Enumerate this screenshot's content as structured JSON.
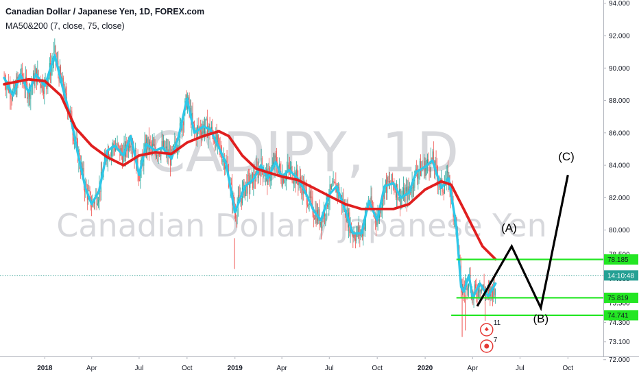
{
  "header": {
    "title": "Canadian Dollar / Japanese Yen, 1D, FOREX.com",
    "study": "MA50&200 (7, close, 75, close)"
  },
  "watermark": {
    "symbol": "CADJPY, 1D",
    "name": "Canadian Dollar / Japanese Yen"
  },
  "colors": {
    "ma_fast": "#2ec7e8",
    "ma_slow": "#e01f1f",
    "level": "#23e623",
    "wave": "#000000",
    "candle_up": "#26a69a",
    "candle_down": "#ef5350",
    "current_price_line": "#2b9a8e",
    "current_price_label": "#25a094"
  },
  "icons": [
    "flag-canada-icon",
    "flag-japan-icon"
  ],
  "event_counts": [
    "11",
    "7"
  ],
  "chart_data": {
    "type": "line",
    "ylim": [
      72.2,
      94.2
    ],
    "y_ticks": [
      94.0,
      92.0,
      90.0,
      88.0,
      86.0,
      84.0,
      82.0,
      80.0,
      78.5,
      77.0,
      75.5,
      74.3,
      73.1,
      72.0
    ],
    "y_tick_labels": [
      "94.000",
      "92.000",
      "90.000",
      "88.000",
      "86.000",
      "84.000",
      "82.000",
      "80.000",
      "78.500",
      "77.000",
      "75.500",
      "74.300",
      "73.100",
      "72.000"
    ],
    "x_labels": [
      "2018",
      "Apr",
      "Jul",
      "Oct",
      "2019",
      "Apr",
      "Jul",
      "Oct",
      "2020",
      "Apr",
      "Jul",
      "Oct"
    ],
    "x_label_bold": [
      "2018",
      "2019",
      "2020"
    ],
    "price_labels": [
      {
        "value": 78.185,
        "text": "78.185",
        "kind": "level"
      },
      {
        "value": 77.2,
        "text": "14:10:48",
        "kind": "current"
      },
      {
        "value": 75.819,
        "text": "75.819",
        "kind": "level"
      },
      {
        "value": 74.741,
        "text": "74.741",
        "kind": "level"
      }
    ],
    "levels": [
      {
        "value": 78.185,
        "from": "2020-03-01",
        "to": "2020-10-31"
      },
      {
        "value": 75.819,
        "from": "2020-03-01",
        "to": "2020-10-31"
      },
      {
        "value": 74.741,
        "from": "2020-02-20",
        "to": "2020-10-31"
      }
    ],
    "current_price": 77.2,
    "series": [
      {
        "kind": "ma_fast",
        "points": [
          [
            "2017-10-15",
            89.4
          ],
          [
            "2017-11-01",
            88.3
          ],
          [
            "2017-11-15",
            89.6
          ],
          [
            "2017-12-01",
            88.5
          ],
          [
            "2017-12-15",
            89.6
          ],
          [
            "2018-01-01",
            88.9
          ],
          [
            "2018-01-20",
            90.8
          ],
          [
            "2018-02-05",
            88.7
          ],
          [
            "2018-02-20",
            86.9
          ],
          [
            "2018-03-05",
            84.8
          ],
          [
            "2018-03-20",
            82.6
          ],
          [
            "2018-04-01",
            81.6
          ],
          [
            "2018-04-15",
            82.4
          ],
          [
            "2018-05-01",
            84.9
          ],
          [
            "2018-05-15",
            85.2
          ],
          [
            "2018-06-01",
            84.6
          ],
          [
            "2018-06-15",
            85.8
          ],
          [
            "2018-07-01",
            83.4
          ],
          [
            "2018-07-15",
            85.3
          ],
          [
            "2018-08-01",
            84.9
          ],
          [
            "2018-08-15",
            85.1
          ],
          [
            "2018-09-01",
            84.4
          ],
          [
            "2018-09-15",
            85.8
          ],
          [
            "2018-10-01",
            88.1
          ],
          [
            "2018-10-15",
            86.0
          ],
          [
            "2018-11-01",
            86.4
          ],
          [
            "2018-11-15",
            86.2
          ],
          [
            "2018-12-01",
            85.1
          ],
          [
            "2018-12-15",
            84.1
          ],
          [
            "2019-01-01",
            81.1
          ],
          [
            "2019-01-20",
            82.7
          ],
          [
            "2019-02-05",
            83.1
          ],
          [
            "2019-02-20",
            84.0
          ],
          [
            "2019-03-05",
            83.2
          ],
          [
            "2019-03-20",
            84.2
          ],
          [
            "2019-04-01",
            83.3
          ],
          [
            "2019-04-15",
            83.7
          ],
          [
            "2019-05-01",
            83.2
          ],
          [
            "2019-05-15",
            82.4
          ],
          [
            "2019-06-01",
            81.2
          ],
          [
            "2019-06-15",
            80.6
          ],
          [
            "2019-07-01",
            82.2
          ],
          [
            "2019-07-15",
            82.7
          ],
          [
            "2019-08-01",
            81.2
          ],
          [
            "2019-08-15",
            79.8
          ],
          [
            "2019-09-01",
            79.8
          ],
          [
            "2019-09-15",
            81.8
          ],
          [
            "2019-10-01",
            80.6
          ],
          [
            "2019-10-15",
            82.7
          ],
          [
            "2019-11-01",
            82.9
          ],
          [
            "2019-11-15",
            82.0
          ],
          [
            "2019-12-01",
            82.3
          ],
          [
            "2019-12-15",
            83.6
          ],
          [
            "2020-01-01",
            83.9
          ],
          [
            "2020-01-15",
            84.3
          ],
          [
            "2020-02-01",
            82.6
          ],
          [
            "2020-02-15",
            83.2
          ],
          [
            "2020-03-01",
            80.2
          ],
          [
            "2020-03-10",
            76.5
          ],
          [
            "2020-03-15",
            76.2
          ],
          [
            "2020-03-25",
            77.2
          ],
          [
            "2020-04-01",
            75.8
          ],
          [
            "2020-04-15",
            76.7
          ],
          [
            "2020-05-01",
            75.9
          ],
          [
            "2020-05-15",
            76.7
          ]
        ]
      },
      {
        "kind": "ma_slow",
        "points": [
          [
            "2017-10-15",
            89.0
          ],
          [
            "2017-12-01",
            89.3
          ],
          [
            "2018-01-01",
            89.2
          ],
          [
            "2018-02-01",
            88.3
          ],
          [
            "2018-03-01",
            86.3
          ],
          [
            "2018-04-01",
            85.2
          ],
          [
            "2018-05-01",
            84.5
          ],
          [
            "2018-06-01",
            84.0
          ],
          [
            "2018-07-01",
            84.6
          ],
          [
            "2018-08-01",
            84.8
          ],
          [
            "2018-09-01",
            84.7
          ],
          [
            "2018-10-01",
            85.4
          ],
          [
            "2018-11-01",
            85.8
          ],
          [
            "2018-12-01",
            86.1
          ],
          [
            "2018-12-20",
            85.8
          ],
          [
            "2019-01-15",
            84.6
          ],
          [
            "2019-02-10",
            83.8
          ],
          [
            "2019-03-01",
            83.6
          ],
          [
            "2019-04-01",
            83.3
          ],
          [
            "2019-05-01",
            83.1
          ],
          [
            "2019-06-01",
            82.6
          ],
          [
            "2019-07-01",
            82.1
          ],
          [
            "2019-08-01",
            81.6
          ],
          [
            "2019-09-01",
            81.3
          ],
          [
            "2019-10-01",
            81.3
          ],
          [
            "2019-11-01",
            81.3
          ],
          [
            "2019-12-01",
            81.6
          ],
          [
            "2020-01-01",
            82.5
          ],
          [
            "2020-02-01",
            83.0
          ],
          [
            "2020-02-20",
            82.8
          ],
          [
            "2020-03-15",
            81.3
          ],
          [
            "2020-04-01",
            80.2
          ],
          [
            "2020-04-20",
            79.0
          ],
          [
            "2020-05-15",
            78.2
          ]
        ]
      }
    ],
    "wave": {
      "points": [
        [
          "2020-04-10",
          75.3
        ],
        [
          "2020-06-15",
          79.0
        ],
        [
          "2020-08-10",
          75.2
        ],
        [
          "2020-10-01",
          83.4
        ]
      ],
      "labels": [
        {
          "text": "(A)",
          "x": "2020-06-10",
          "y": 79.9
        },
        {
          "text": "(B)",
          "x": "2020-08-10",
          "y": 74.3
        },
        {
          "text": "(C)",
          "x": "2020-09-28",
          "y": 84.3
        }
      ]
    }
  }
}
